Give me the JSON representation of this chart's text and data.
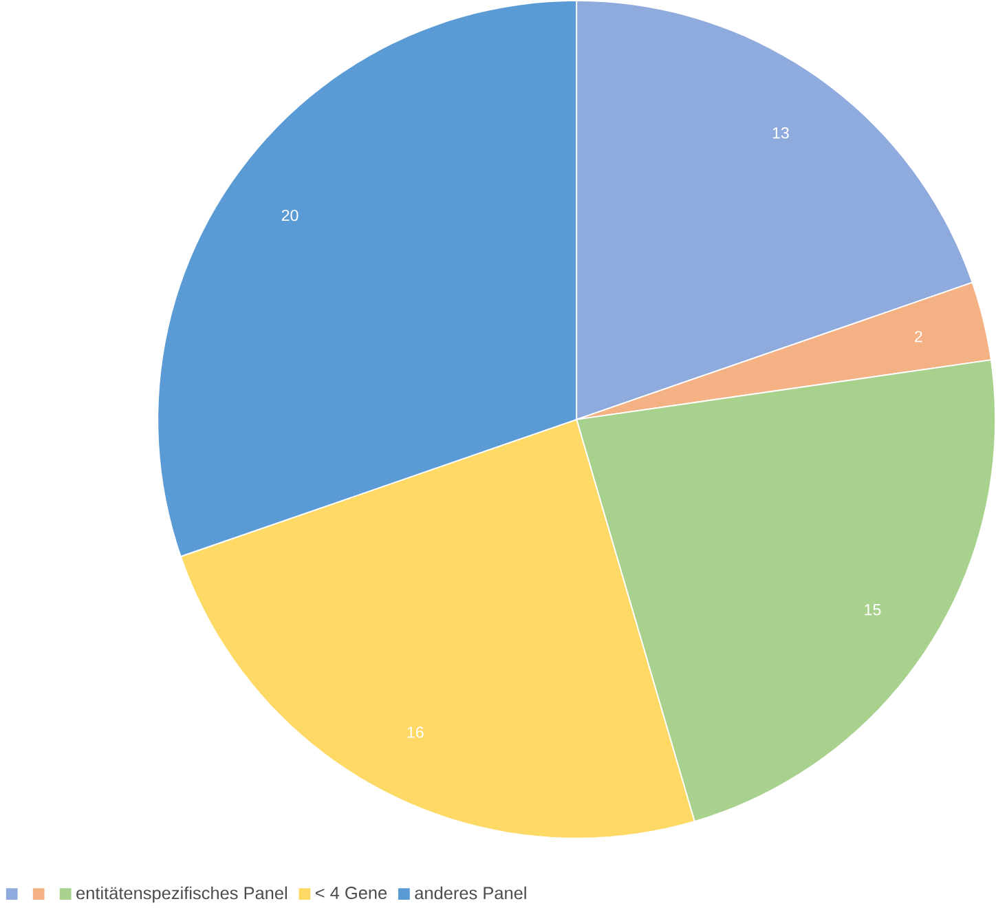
{
  "chart_data": {
    "type": "pie",
    "categories": [
      null,
      null,
      "entitätenspezifisches Panel",
      "< 4 Gene",
      "anderes Panel"
    ],
    "values": [
      13,
      2,
      15,
      16,
      20
    ],
    "colors": [
      "#8faadc",
      "#f4b183",
      "#a9d18e",
      "#ffd966",
      "#5b9bd5"
    ],
    "data_labels": true,
    "legend": "bottom"
  }
}
